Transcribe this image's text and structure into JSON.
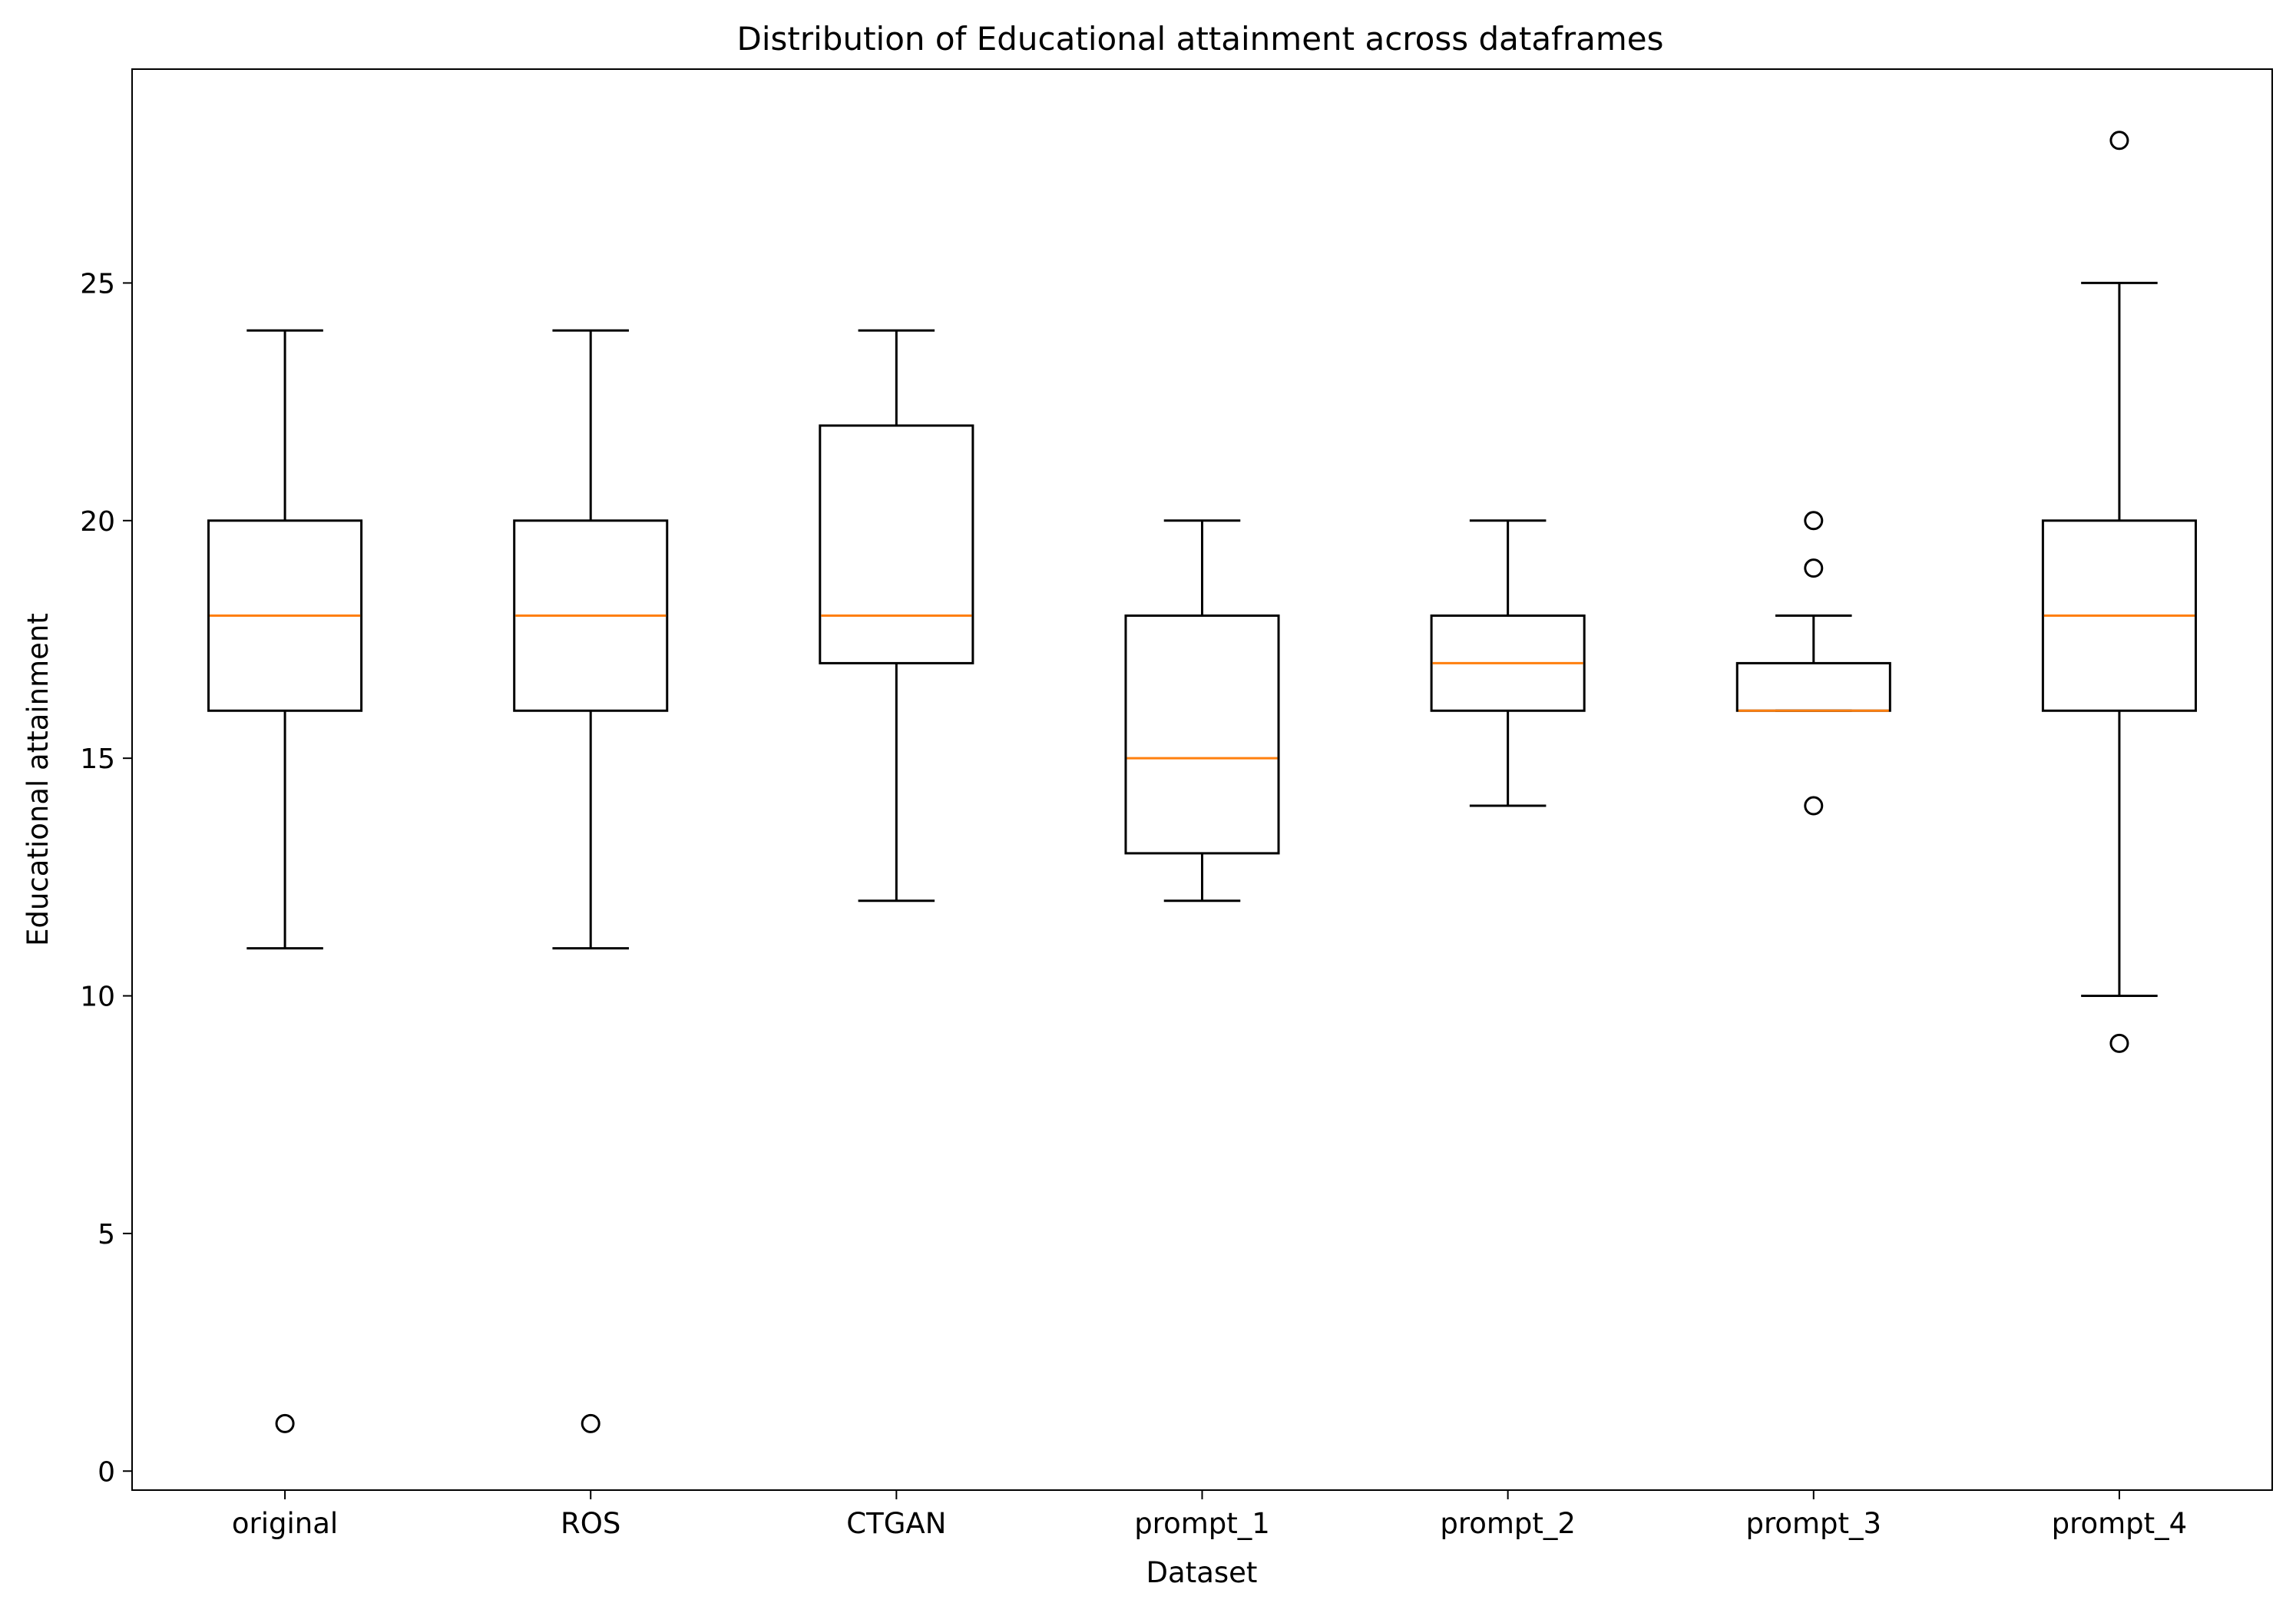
{
  "chart_data": {
    "type": "box",
    "title": "Distribution of Educational attainment across dataframes",
    "xlabel": "Dataset",
    "ylabel": "Educational attainment",
    "ylim": [
      -0.4,
      29.5
    ],
    "yticks": [
      0,
      5,
      10,
      15,
      20,
      25
    ],
    "grid": false,
    "legend": "none",
    "colors": {
      "box": "#000000",
      "median": "#ff7f0e"
    },
    "categories": [
      "original",
      "ROS",
      "CTGAN",
      "prompt_1",
      "prompt_2",
      "prompt_3",
      "prompt_4"
    ],
    "boxes": [
      {
        "name": "original",
        "whislo": 11,
        "q1": 16,
        "med": 18,
        "q3": 20,
        "whishi": 24,
        "fliers": [
          1
        ]
      },
      {
        "name": "ROS",
        "whislo": 11,
        "q1": 16,
        "med": 18,
        "q3": 20,
        "whishi": 24,
        "fliers": [
          1
        ]
      },
      {
        "name": "CTGAN",
        "whislo": 12,
        "q1": 17,
        "med": 18,
        "q3": 22,
        "whishi": 24,
        "fliers": []
      },
      {
        "name": "prompt_1",
        "whislo": 12,
        "q1": 13,
        "med": 15,
        "q3": 18,
        "whishi": 20,
        "fliers": []
      },
      {
        "name": "prompt_2",
        "whislo": 14,
        "q1": 16,
        "med": 17,
        "q3": 18,
        "whishi": 20,
        "fliers": []
      },
      {
        "name": "prompt_3",
        "whislo": 16,
        "q1": 16,
        "med": 16,
        "q3": 17,
        "whishi": 18,
        "fliers": [
          14,
          19,
          20
        ]
      },
      {
        "name": "prompt_4",
        "whislo": 10,
        "q1": 16,
        "med": 18,
        "q3": 20,
        "whishi": 25,
        "fliers": [
          9,
          28
        ]
      }
    ]
  }
}
